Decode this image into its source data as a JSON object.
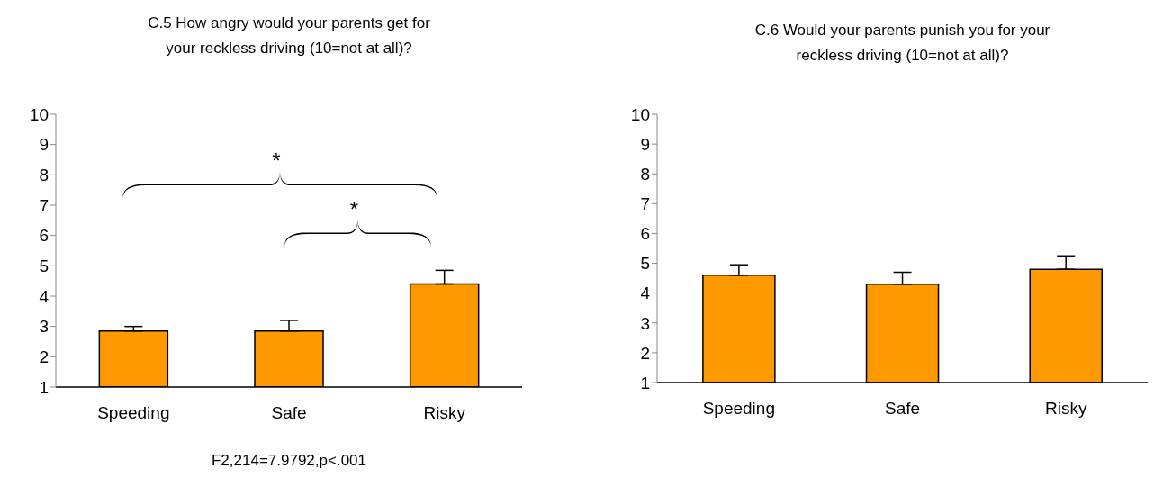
{
  "chart_data": [
    {
      "type": "bar",
      "title": "C.5 How angry would your parents get for your reckless driving (10=not at all)?",
      "categories": [
        "Speeding",
        "Safe",
        "Risky"
      ],
      "values": [
        2.85,
        2.85,
        4.4
      ],
      "errors": [
        [
          2.85,
          3.0
        ],
        [
          2.85,
          3.2
        ],
        [
          4.4,
          4.85
        ]
      ],
      "color": "#ff9900",
      "ylim": [
        1,
        10
      ],
      "yticks": [
        1,
        2,
        3,
        4,
        5,
        6,
        7,
        8,
        9,
        10
      ],
      "grid": false,
      "legend": false,
      "annotations": [
        "*",
        "*",
        "F2,214=7.9792,p<.001"
      ]
    },
    {
      "type": "bar",
      "title": "C.6 Would your parents punish you for your reckless driving (10=not at all)?",
      "categories": [
        "Speeding",
        "Safe",
        "Risky"
      ],
      "values": [
        4.6,
        4.3,
        4.8
      ],
      "errors": [
        [
          4.6,
          4.95
        ],
        [
          4.3,
          4.7
        ],
        [
          4.8,
          5.25
        ]
      ],
      "color": "#ff9900",
      "ylim": [
        1,
        10
      ],
      "yticks": [
        1,
        2,
        3,
        4,
        5,
        6,
        7,
        8,
        9,
        10
      ],
      "grid": false,
      "legend": false
    }
  ]
}
